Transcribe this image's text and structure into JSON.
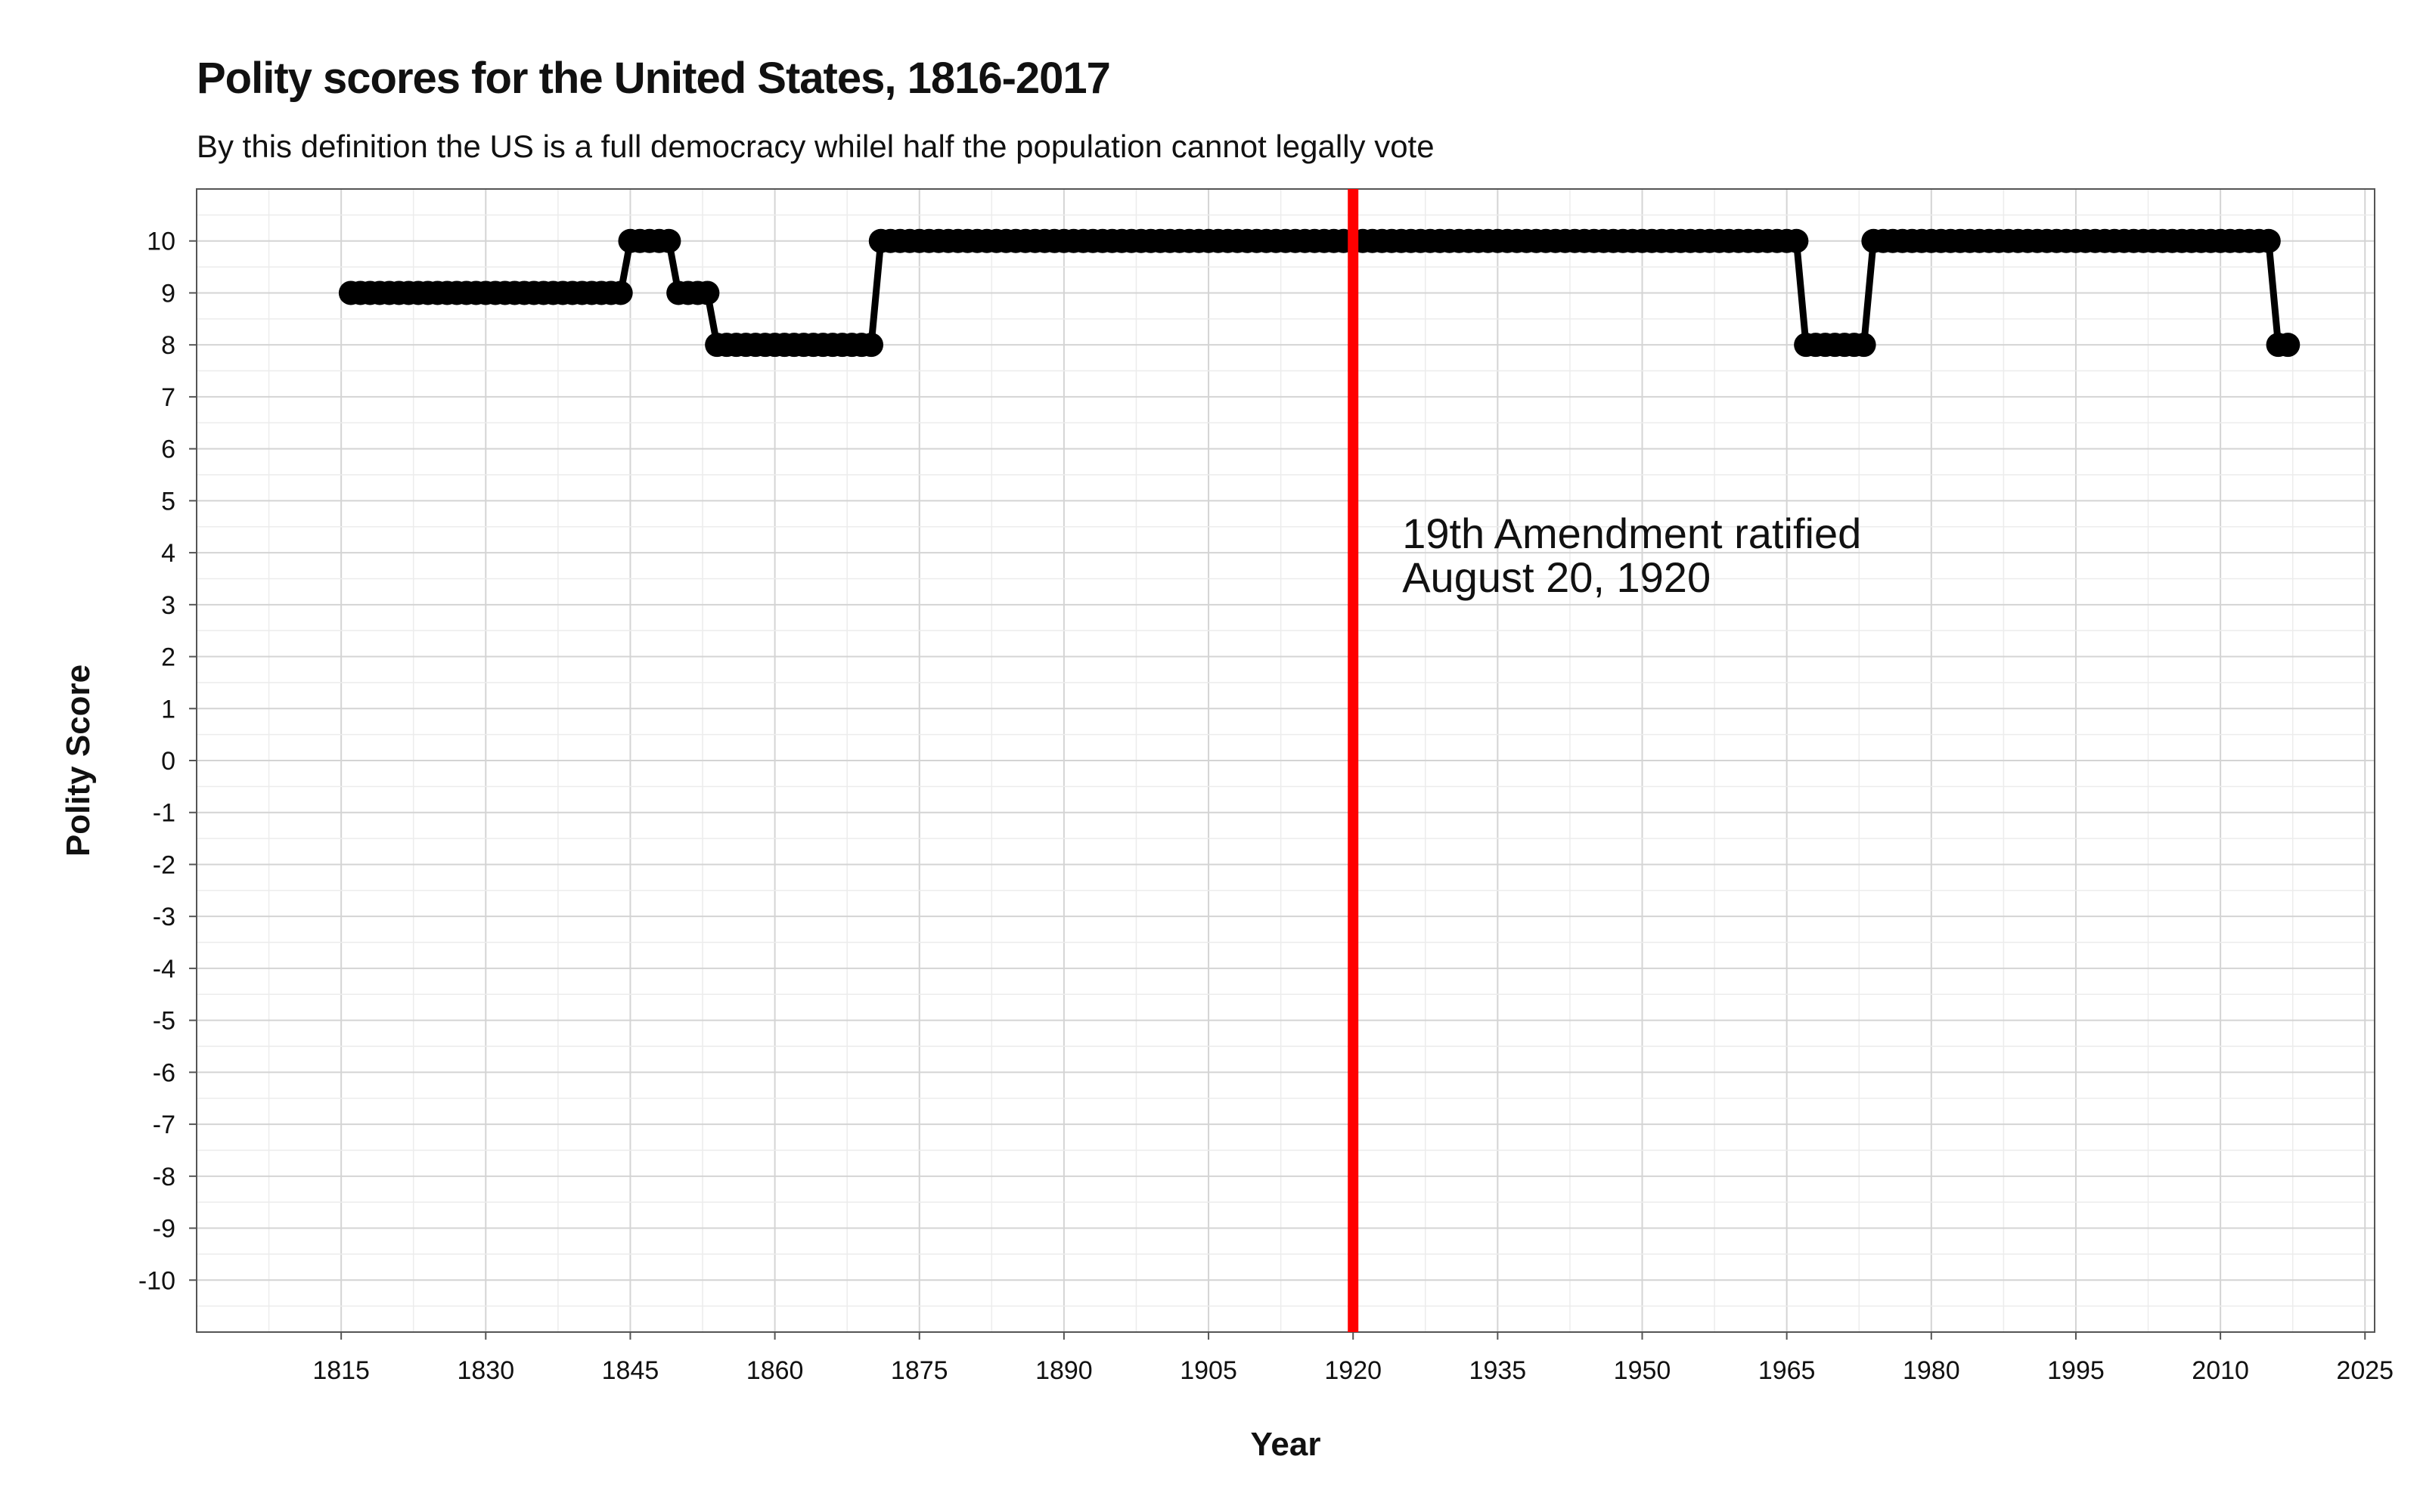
{
  "chart_data": {
    "type": "line",
    "title": "Polity scores for the United States, 1816-2017",
    "subtitle": "By this definition the US is a full democracy whilel half the population cannot legally vote",
    "xlabel": "Year",
    "ylabel": "Polity Score",
    "xlim": [
      1800,
      2026
    ],
    "ylim": [
      -11,
      11
    ],
    "x_ticks": [
      1815,
      1830,
      1845,
      1860,
      1875,
      1890,
      1905,
      1920,
      1935,
      1950,
      1965,
      1980,
      1995,
      2010,
      2025
    ],
    "y_ticks": [
      -10,
      -9,
      -8,
      -7,
      -6,
      -5,
      -4,
      -3,
      -2,
      -1,
      0,
      1,
      2,
      3,
      4,
      5,
      6,
      7,
      8,
      9,
      10
    ],
    "grid": true,
    "series": [
      {
        "segments": [
          {
            "from": 1816,
            "to": 1844,
            "value": 9
          },
          {
            "from": 1845,
            "to": 1849,
            "value": 10
          },
          {
            "from": 1850,
            "to": 1853,
            "value": 9
          },
          {
            "from": 1854,
            "to": 1870,
            "value": 8
          },
          {
            "from": 1871,
            "to": 1966,
            "value": 10
          },
          {
            "from": 1967,
            "to": 1973,
            "value": 8
          },
          {
            "from": 1974,
            "to": 2015,
            "value": 10
          },
          {
            "from": 2016,
            "to": 2017,
            "value": 8
          }
        ],
        "color": "#000000"
      }
    ],
    "reference_line": {
      "x": 1920,
      "color": "#ff0000"
    },
    "annotation": {
      "line1": "19th Amendment ratified",
      "line2": "August 20, 1920"
    }
  }
}
